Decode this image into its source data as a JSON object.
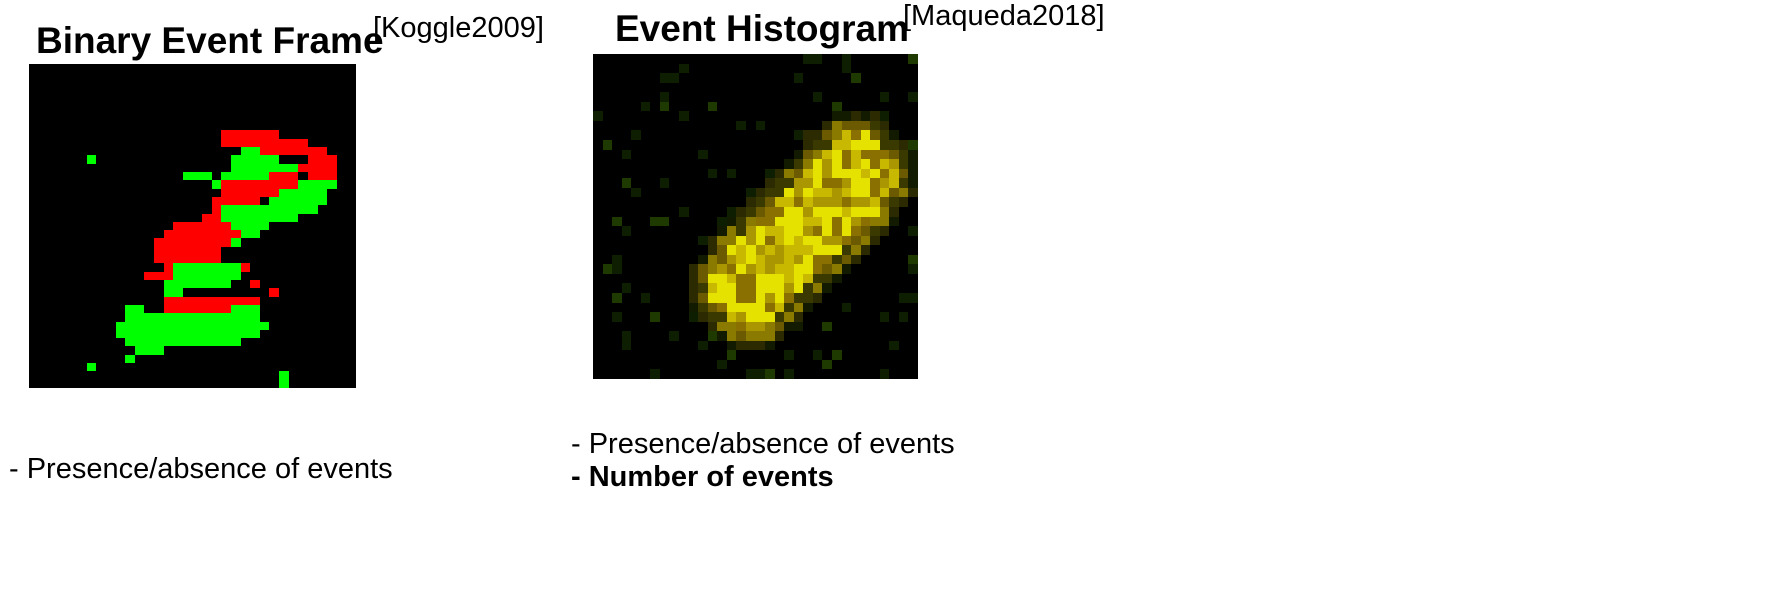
{
  "panels": [
    {
      "title": "Binary Event Frame",
      "citation": "[Koggle2009]",
      "bullets": [
        "- Presence/absence of events"
      ],
      "colors": {
        "background": "#000000",
        "red": "#ff0000",
        "green": "#00ff00"
      },
      "grid": [
        "..................................",
        "..................................",
        "..................................",
        "..................................",
        "..................................",
        "..................................",
        "..................................",
        "..................................",
        "....................RRRRRR........",
        "....................RRRRRRRRR.....",
        "......................GGRRRRRRR...",
        "......G..............GGGGG...RRR..",
        ".....................GGGGGGGRRRR..",
        "................GGG.GGGGGRRR.RRR..",
        "...................GRRRRRRRRGGGG..",
        "....................RRRRRRGGGGG...",
        "...................RRRRR.GGGGGG...",
        "...................RGGGGGGGGGG....",
        "..................RRGGGGGGGG......",
        "...............RRRRRRGGGG.........",
        "..............RRRRRRRRGG..........",
        ".............RRRRRRRRG............",
        ".............RRRRRRR..............",
        ".............RRRRRRR..............",
        "..............RGGGGGGGR...........",
        "............RRRGGGGGGG............",
        "..............GGGGGGG..R..........",
        "..............GG.........R........",
        "..............RRRRRRRRRR..........",
        "..........GG..RRRRRRRGGG..........",
        "..........GGGGGGGGGGGGGG..........",
        ".........GGGGGGGGGGGGGGGG.........",
        ".........GGGGGGGGGGGGGGG..........",
        "..........GGGGGGGGGGGG............",
        "...........GGG....................",
        "..........G.......................",
        "......G...........................",
        "..........................G.......",
        "..........................G......."
      ]
    },
    {
      "title": "Event Histogram",
      "citation": "[Maqueda2018]",
      "bullets": [
        "- Presence/absence of events",
        "- Number of events"
      ],
      "colors": {
        "background": "#000000",
        "yellow": "#e3e000",
        "yellow_dim": "#9a8e00",
        "green": "#4a8a00",
        "dark_green": "#1f3a00",
        "brown": "#6a5200"
      },
      "blob_center_upper": [
        27,
        12
      ],
      "blob_center_lower": [
        16,
        24
      ]
    }
  ]
}
